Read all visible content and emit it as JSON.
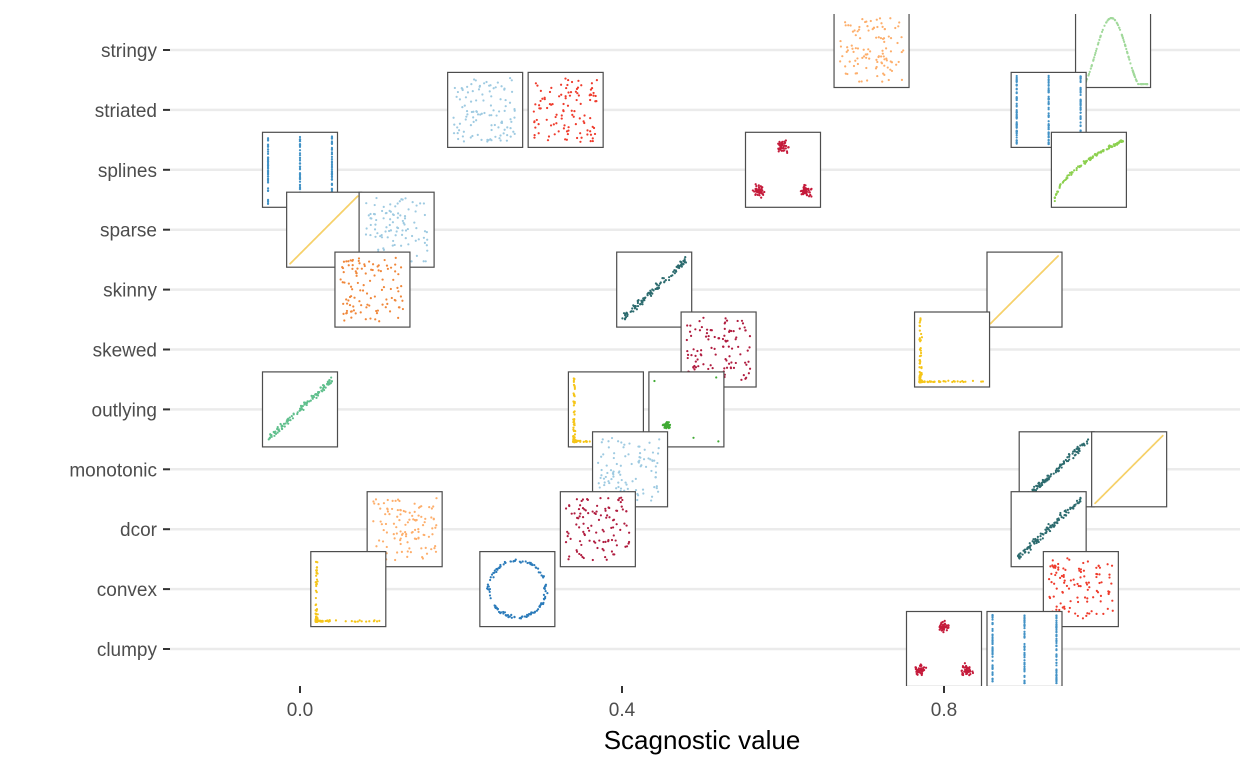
{
  "chart_data": {
    "type": "scatter",
    "title": "",
    "xlabel": "Scagnostic value",
    "ylabel": "",
    "xlim": [
      -0.16,
      1.16
    ],
    "x_ticks": [
      0.0,
      0.4,
      0.8
    ],
    "x_tick_labels": [
      "0.0",
      "0.4",
      "0.8"
    ],
    "categories": [
      "clumpy",
      "convex",
      "dcor",
      "monotonic",
      "outlying",
      "skewed",
      "skinny",
      "sparse",
      "splines",
      "striated",
      "stringy"
    ],
    "grid": true,
    "legend": "none",
    "mark": "scatterplot-thumbnail",
    "points": [
      {
        "category": "stringy",
        "x": 0.71,
        "pattern": "uniform",
        "color": "#fdae6b"
      },
      {
        "category": "stringy",
        "x": 1.01,
        "pattern": "sine",
        "color": "#a1d99b"
      },
      {
        "category": "striated",
        "x": 0.23,
        "pattern": "uniform",
        "color": "#9ecae1"
      },
      {
        "category": "striated",
        "x": 0.33,
        "pattern": "uniform",
        "color": "#ef3b2c"
      },
      {
        "category": "striated",
        "x": 0.93,
        "pattern": "vertical-lines",
        "color": "#4292c6"
      },
      {
        "category": "splines",
        "x": 0.0,
        "pattern": "vertical-lines",
        "color": "#4292c6"
      },
      {
        "category": "splines",
        "x": 0.6,
        "pattern": "clusters",
        "color": "#c51b3b"
      },
      {
        "category": "splines",
        "x": 0.98,
        "pattern": "spline",
        "color": "#8cd04f"
      },
      {
        "category": "sparse",
        "x": 0.03,
        "pattern": "diagonal-line",
        "color": "#f6d16b"
      },
      {
        "category": "sparse",
        "x": 0.12,
        "pattern": "uniform",
        "color": "#9ecae1"
      },
      {
        "category": "skinny",
        "x": 0.09,
        "pattern": "uniform",
        "color": "#f0873a"
      },
      {
        "category": "skinny",
        "x": 0.44,
        "pattern": "linear",
        "color": "#2c6b6e"
      },
      {
        "category": "skinny",
        "x": 0.9,
        "pattern": "diagonal-line",
        "color": "#f6d16b"
      },
      {
        "category": "skewed",
        "x": 0.52,
        "pattern": "uniform",
        "color": "#b01c3f"
      },
      {
        "category": "skewed",
        "x": 0.81,
        "pattern": "l-shape",
        "color": "#f5c518"
      },
      {
        "category": "outlying",
        "x": 0.0,
        "pattern": "linear",
        "color": "#5fbf8c"
      },
      {
        "category": "outlying",
        "x": 0.38,
        "pattern": "l-shape",
        "color": "#f5c518"
      },
      {
        "category": "outlying",
        "x": 0.48,
        "pattern": "dense-outlier",
        "color": "#41ab35"
      },
      {
        "category": "monotonic",
        "x": 0.41,
        "pattern": "uniform",
        "color": "#9ecae1"
      },
      {
        "category": "monotonic",
        "x": 0.94,
        "pattern": "linear",
        "color": "#2c6b6e"
      },
      {
        "category": "monotonic",
        "x": 1.03,
        "pattern": "diagonal-line",
        "color": "#f6d16b"
      },
      {
        "category": "dcor",
        "x": 0.13,
        "pattern": "uniform",
        "color": "#fdae6b"
      },
      {
        "category": "dcor",
        "x": 0.37,
        "pattern": "uniform",
        "color": "#b01c3f"
      },
      {
        "category": "dcor",
        "x": 0.93,
        "pattern": "linear",
        "color": "#2c6b6e"
      },
      {
        "category": "convex",
        "x": 0.06,
        "pattern": "l-shape",
        "color": "#f5c518"
      },
      {
        "category": "convex",
        "x": 0.27,
        "pattern": "ring",
        "color": "#2b7bba"
      },
      {
        "category": "convex",
        "x": 0.97,
        "pattern": "uniform",
        "color": "#ef3b2c"
      },
      {
        "category": "clumpy",
        "x": 0.8,
        "pattern": "clusters",
        "color": "#c51b3b"
      },
      {
        "category": "clumpy",
        "x": 0.9,
        "pattern": "vertical-lines",
        "color": "#4292c6"
      }
    ]
  }
}
